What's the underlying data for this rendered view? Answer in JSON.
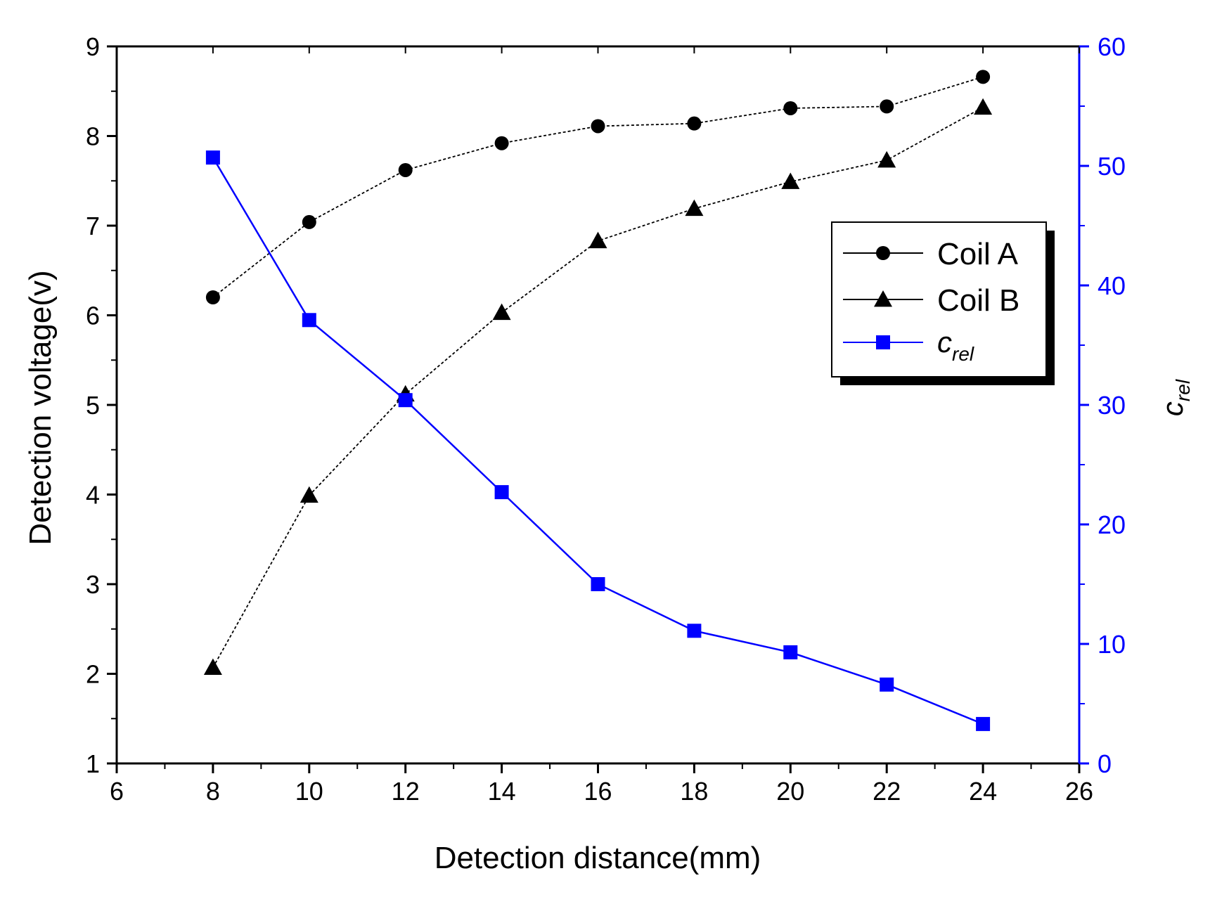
{
  "chart_data": {
    "type": "line",
    "title": "",
    "xlabel": "Detection distance(mm)",
    "ylabel": "Detection voltage(v)",
    "y2label": {
      "main": "c",
      "sub": "rel"
    },
    "xlim": [
      6,
      26
    ],
    "ylim": [
      1,
      9
    ],
    "y2lim": [
      0,
      60
    ],
    "x_ticks": [
      "6",
      "8",
      "10",
      "12",
      "14",
      "16",
      "18",
      "20",
      "22",
      "24",
      "26"
    ],
    "y_ticks": [
      "1",
      "2",
      "3",
      "4",
      "5",
      "6",
      "7",
      "8",
      "9"
    ],
    "y2_ticks": [
      "0",
      "10",
      "20",
      "30",
      "40",
      "50",
      "60"
    ],
    "x": [
      8,
      10,
      12,
      14,
      16,
      18,
      20,
      22,
      24
    ],
    "series": [
      {
        "name": "Coil A",
        "axis": "left",
        "marker": "circle",
        "color": "#000000",
        "values": [
          6.2,
          7.04,
          7.62,
          7.92,
          8.11,
          8.14,
          8.31,
          8.33,
          8.66
        ]
      },
      {
        "name": "Coil B",
        "axis": "left",
        "marker": "triangle",
        "color": "#000000",
        "values": [
          2.07,
          3.99,
          5.12,
          6.03,
          6.83,
          7.19,
          7.49,
          7.73,
          8.32
        ]
      },
      {
        "name": "c_rel",
        "axis": "right",
        "marker": "square",
        "color": "#0000ff",
        "values": [
          50.7,
          37.1,
          30.4,
          22.7,
          15.0,
          11.1,
          9.3,
          6.6,
          3.3
        ]
      }
    ],
    "legend": {
      "position": "top-right",
      "entries": [
        {
          "label": "Coil A"
        },
        {
          "label": "Coil B"
        },
        {
          "label_main": "c",
          "label_sub": "rel"
        }
      ]
    },
    "colors": {
      "right_axis": "#0000ff",
      "axis": "#000000"
    }
  }
}
